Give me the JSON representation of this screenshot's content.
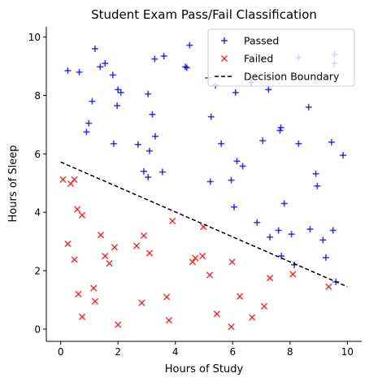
{
  "chart_data": {
    "type": "scatter",
    "title": "Student Exam Pass/Fail Classification",
    "xlabel": "Hours of Study",
    "ylabel": "Hours of Sleep",
    "xlim": [
      -0.5,
      10.5
    ],
    "ylim": [
      -0.42,
      10.35
    ],
    "xticks": [
      0,
      2,
      4,
      6,
      8,
      10
    ],
    "yticks": [
      0,
      2,
      4,
      6,
      8,
      10
    ],
    "grid": false,
    "legend_position": "top-right",
    "series": [
      {
        "name": "Passed",
        "marker": "plus",
        "color": "#0000ff",
        "points": [
          [
            0.25,
            8.85
          ],
          [
            0.65,
            8.8
          ],
          [
            0.9,
            6.75
          ],
          [
            0.98,
            7.05
          ],
          [
            1.1,
            7.8
          ],
          [
            1.2,
            9.6
          ],
          [
            1.38,
            8.98
          ],
          [
            1.55,
            9.1
          ],
          [
            1.82,
            8.7
          ],
          [
            1.85,
            6.35
          ],
          [
            1.97,
            7.65
          ],
          [
            2.0,
            8.2
          ],
          [
            2.1,
            8.1
          ],
          [
            2.7,
            6.32
          ],
          [
            2.9,
            5.4
          ],
          [
            3.05,
            8.05
          ],
          [
            3.05,
            5.2
          ],
          [
            3.1,
            6.1
          ],
          [
            3.2,
            7.35
          ],
          [
            3.28,
            9.25
          ],
          [
            3.3,
            6.6
          ],
          [
            3.55,
            5.38
          ],
          [
            3.6,
            9.35
          ],
          [
            4.35,
            8.98
          ],
          [
            4.4,
            8.95
          ],
          [
            4.5,
            9.72
          ],
          [
            5.15,
            8.6
          ],
          [
            5.25,
            7.27
          ],
          [
            5.22,
            5.05
          ],
          [
            5.4,
            8.35
          ],
          [
            5.6,
            6.35
          ],
          [
            5.95,
            5.1
          ],
          [
            6.05,
            4.18
          ],
          [
            6.1,
            8.1
          ],
          [
            6.15,
            5.75
          ],
          [
            6.35,
            5.58
          ],
          [
            6.65,
            8.45
          ],
          [
            6.85,
            3.65
          ],
          [
            7.05,
            6.45
          ],
          [
            7.25,
            8.2
          ],
          [
            7.3,
            3.15
          ],
          [
            7.6,
            3.38
          ],
          [
            7.65,
            6.8
          ],
          [
            7.68,
            6.9
          ],
          [
            7.8,
            4.3
          ],
          [
            7.7,
            2.5
          ],
          [
            8.05,
            3.25
          ],
          [
            8.15,
            2.2
          ],
          [
            8.3,
            6.35
          ],
          [
            8.3,
            9.3
          ],
          [
            8.65,
            7.6
          ],
          [
            8.7,
            3.42
          ],
          [
            8.9,
            5.32
          ],
          [
            8.95,
            4.9
          ],
          [
            9.15,
            3.05
          ],
          [
            9.25,
            2.45
          ],
          [
            9.45,
            6.4
          ],
          [
            9.5,
            3.38
          ],
          [
            9.55,
            9.4
          ],
          [
            9.55,
            9.1
          ],
          [
            9.6,
            1.62
          ],
          [
            9.85,
            5.95
          ]
        ]
      },
      {
        "name": "Failed",
        "marker": "x",
        "color": "#ff0000",
        "points": [
          [
            0.08,
            5.12
          ],
          [
            0.25,
            2.92
          ],
          [
            0.35,
            4.98
          ],
          [
            0.48,
            2.38
          ],
          [
            0.48,
            5.12
          ],
          [
            0.58,
            4.1
          ],
          [
            0.62,
            1.2
          ],
          [
            0.75,
            0.42
          ],
          [
            0.75,
            3.9
          ],
          [
            1.15,
            1.4
          ],
          [
            1.2,
            0.95
          ],
          [
            1.4,
            3.22
          ],
          [
            1.55,
            2.5
          ],
          [
            1.7,
            2.25
          ],
          [
            1.88,
            2.8
          ],
          [
            2.0,
            0.15
          ],
          [
            2.65,
            2.85
          ],
          [
            2.83,
            0.9
          ],
          [
            2.9,
            3.2
          ],
          [
            3.1,
            2.6
          ],
          [
            3.7,
            1.1
          ],
          [
            3.78,
            0.3
          ],
          [
            3.9,
            3.7
          ],
          [
            4.6,
            2.3
          ],
          [
            4.7,
            2.43
          ],
          [
            4.95,
            2.5
          ],
          [
            4.98,
            3.5
          ],
          [
            5.2,
            1.85
          ],
          [
            5.45,
            0.52
          ],
          [
            5.95,
            0.08
          ],
          [
            5.98,
            2.3
          ],
          [
            6.25,
            1.12
          ],
          [
            6.68,
            0.4
          ],
          [
            7.1,
            0.78
          ],
          [
            7.3,
            1.75
          ],
          [
            8.1,
            1.88
          ],
          [
            9.35,
            1.45
          ]
        ]
      },
      {
        "name": "Decision Boundary",
        "kind": "line",
        "style": "dashed",
        "color": "#000000",
        "points": [
          [
            0,
            5.72
          ],
          [
            10,
            1.45
          ]
        ]
      }
    ]
  }
}
